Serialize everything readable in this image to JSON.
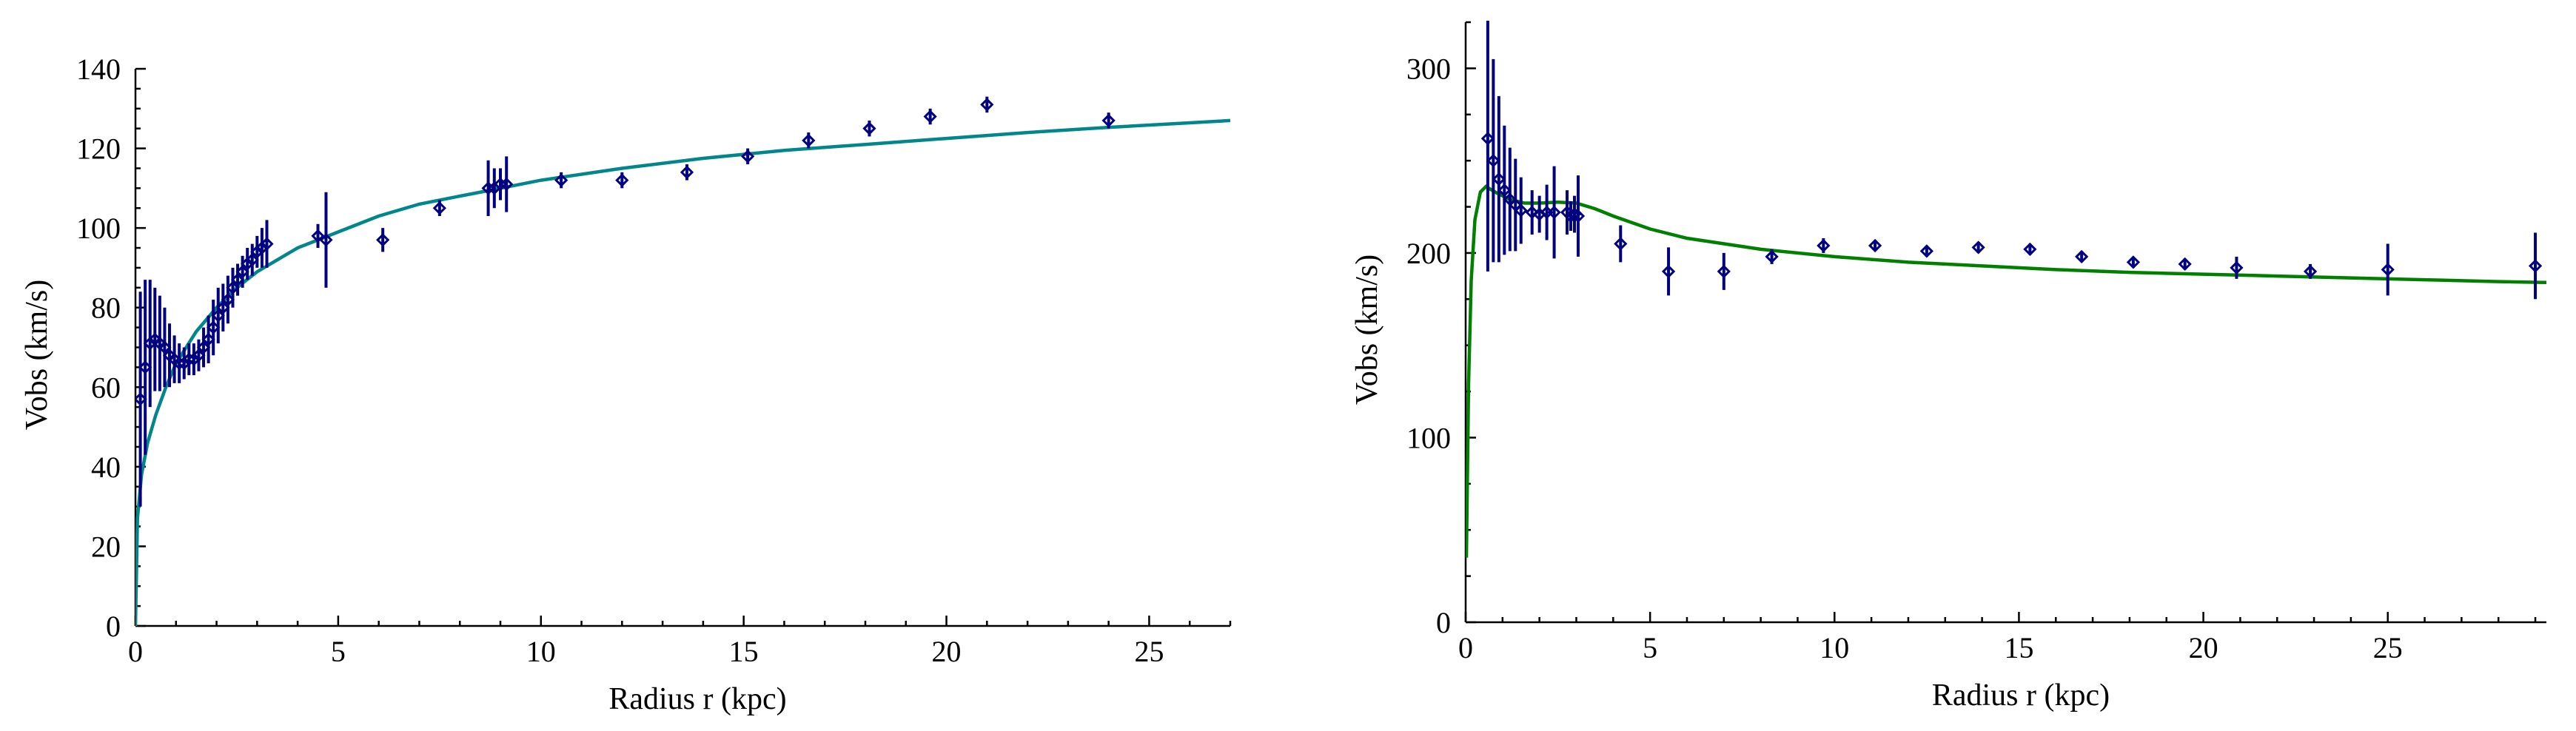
{
  "chart_data": [
    {
      "type": "scatter",
      "title": "",
      "xlabel": "Radius  r  (kpc)",
      "ylabel": "Vobs  (km/s)",
      "xlim": [
        0,
        27
      ],
      "ylim": [
        0,
        140
      ],
      "xticks": [
        0,
        5,
        10,
        15,
        20,
        25
      ],
      "yticks": [
        0,
        20,
        40,
        60,
        80,
        100,
        120,
        140
      ],
      "grid": false,
      "legend": "none",
      "fit_color": "#00868b",
      "marker_color": "#000080",
      "points": [
        {
          "x": 0.12,
          "y": 57,
          "err": 27
        },
        {
          "x": 0.24,
          "y": 65,
          "err": 22
        },
        {
          "x": 0.36,
          "y": 71,
          "err": 16
        },
        {
          "x": 0.48,
          "y": 72,
          "err": 13
        },
        {
          "x": 0.6,
          "y": 71,
          "err": 12
        },
        {
          "x": 0.72,
          "y": 70,
          "err": 10
        },
        {
          "x": 0.84,
          "y": 68,
          "err": 8
        },
        {
          "x": 0.96,
          "y": 67,
          "err": 6
        },
        {
          "x": 1.08,
          "y": 66,
          "err": 5
        },
        {
          "x": 1.2,
          "y": 66,
          "err": 4
        },
        {
          "x": 1.32,
          "y": 67,
          "err": 4
        },
        {
          "x": 1.44,
          "y": 67,
          "err": 4
        },
        {
          "x": 1.56,
          "y": 68,
          "err": 4
        },
        {
          "x": 1.68,
          "y": 70,
          "err": 5
        },
        {
          "x": 1.8,
          "y": 72,
          "err": 6
        },
        {
          "x": 1.92,
          "y": 75,
          "err": 7
        },
        {
          "x": 2.04,
          "y": 78,
          "err": 7
        },
        {
          "x": 2.16,
          "y": 80,
          "err": 6
        },
        {
          "x": 2.28,
          "y": 82,
          "err": 6
        },
        {
          "x": 2.4,
          "y": 85,
          "err": 5
        },
        {
          "x": 2.52,
          "y": 87,
          "err": 4
        },
        {
          "x": 2.64,
          "y": 89,
          "err": 4
        },
        {
          "x": 2.76,
          "y": 91,
          "err": 4
        },
        {
          "x": 2.88,
          "y": 92,
          "err": 4
        },
        {
          "x": 3.0,
          "y": 94,
          "err": 4
        },
        {
          "x": 3.12,
          "y": 95,
          "err": 5
        },
        {
          "x": 3.24,
          "y": 96,
          "err": 6
        },
        {
          "x": 4.5,
          "y": 98,
          "err": 3
        },
        {
          "x": 4.7,
          "y": 97,
          "err": 12
        },
        {
          "x": 6.1,
          "y": 97,
          "err": 3
        },
        {
          "x": 7.5,
          "y": 105,
          "err": 2
        },
        {
          "x": 8.7,
          "y": 110,
          "err": 7
        },
        {
          "x": 8.85,
          "y": 110,
          "err": 5
        },
        {
          "x": 9.0,
          "y": 111,
          "err": 4
        },
        {
          "x": 9.15,
          "y": 111,
          "err": 7
        },
        {
          "x": 10.5,
          "y": 112,
          "err": 2
        },
        {
          "x": 12.0,
          "y": 112,
          "err": 2
        },
        {
          "x": 13.6,
          "y": 114,
          "err": 2
        },
        {
          "x": 15.1,
          "y": 118,
          "err": 2
        },
        {
          "x": 16.6,
          "y": 122,
          "err": 2
        },
        {
          "x": 18.1,
          "y": 125,
          "err": 2
        },
        {
          "x": 19.6,
          "y": 128,
          "err": 2
        },
        {
          "x": 21.0,
          "y": 131,
          "err": 2
        },
        {
          "x": 24.0,
          "y": 127,
          "err": 2
        }
      ],
      "fit_curve": [
        [
          0.0,
          0
        ],
        [
          0.05,
          27
        ],
        [
          0.15,
          38
        ],
        [
          0.3,
          46
        ],
        [
          0.5,
          53
        ],
        [
          0.75,
          60
        ],
        [
          1.0,
          66
        ],
        [
          1.5,
          74
        ],
        [
          2.0,
          80
        ],
        [
          2.5,
          85
        ],
        [
          3.0,
          89
        ],
        [
          4.0,
          95
        ],
        [
          5.0,
          99
        ],
        [
          6.0,
          103
        ],
        [
          7.0,
          106
        ],
        [
          8.0,
          108
        ],
        [
          9.0,
          110
        ],
        [
          10.0,
          112
        ],
        [
          12.0,
          115
        ],
        [
          14.0,
          117.5
        ],
        [
          16.0,
          119.5
        ],
        [
          18.0,
          121
        ],
        [
          20.0,
          122.5
        ],
        [
          22.0,
          124
        ],
        [
          24.0,
          125.3
        ],
        [
          27.0,
          127
        ]
      ]
    },
    {
      "type": "scatter",
      "title": "",
      "xlabel": "Radius  r  (kpc)",
      "ylabel": "Vobs  (km/s)",
      "xlim": [
        0,
        29.3
      ],
      "ylim": [
        0,
        325
      ],
      "xticks": [
        0,
        5,
        10,
        15,
        20,
        25
      ],
      "yticks": [
        0,
        100,
        200,
        300
      ],
      "grid": false,
      "legend": "none",
      "fit_color": "#008000",
      "marker_color": "#000080",
      "points": [
        {
          "x": 0.6,
          "y": 262,
          "err": 72
        },
        {
          "x": 0.75,
          "y": 250,
          "err": 55
        },
        {
          "x": 0.9,
          "y": 240,
          "err": 45
        },
        {
          "x": 1.05,
          "y": 234,
          "err": 35
        },
        {
          "x": 1.2,
          "y": 229,
          "err": 28
        },
        {
          "x": 1.35,
          "y": 226,
          "err": 25
        },
        {
          "x": 1.5,
          "y": 223,
          "err": 18
        },
        {
          "x": 1.8,
          "y": 222,
          "err": 12
        },
        {
          "x": 2.0,
          "y": 221,
          "err": 10
        },
        {
          "x": 2.2,
          "y": 222,
          "err": 15
        },
        {
          "x": 2.4,
          "y": 222,
          "err": 25
        },
        {
          "x": 2.75,
          "y": 222,
          "err": 12
        },
        {
          "x": 2.85,
          "y": 220,
          "err": 8
        },
        {
          "x": 2.95,
          "y": 221,
          "err": 10
        },
        {
          "x": 3.05,
          "y": 220,
          "err": 22
        },
        {
          "x": 4.2,
          "y": 205,
          "err": 10
        },
        {
          "x": 5.5,
          "y": 190,
          "err": 13
        },
        {
          "x": 7.0,
          "y": 190,
          "err": 10
        },
        {
          "x": 8.3,
          "y": 198,
          "err": 4
        },
        {
          "x": 9.7,
          "y": 204,
          "err": 4
        },
        {
          "x": 11.1,
          "y": 204,
          "err": 3
        },
        {
          "x": 12.5,
          "y": 201,
          "err": 3
        },
        {
          "x": 13.9,
          "y": 203,
          "err": 3
        },
        {
          "x": 15.3,
          "y": 202,
          "err": 3
        },
        {
          "x": 16.7,
          "y": 198,
          "err": 3
        },
        {
          "x": 18.1,
          "y": 195,
          "err": 3
        },
        {
          "x": 19.5,
          "y": 194,
          "err": 3
        },
        {
          "x": 20.9,
          "y": 192,
          "err": 6
        },
        {
          "x": 22.9,
          "y": 190,
          "err": 4
        },
        {
          "x": 25.0,
          "y": 191,
          "err": 14
        },
        {
          "x": 29.0,
          "y": 193,
          "err": 18
        }
      ],
      "fit_curve": [
        [
          0.02,
          35
        ],
        [
          0.08,
          130
        ],
        [
          0.15,
          185
        ],
        [
          0.25,
          218
        ],
        [
          0.4,
          233
        ],
        [
          0.55,
          236
        ],
        [
          0.8,
          233
        ],
        [
          1.2,
          229
        ],
        [
          1.6,
          227
        ],
        [
          2.0,
          227
        ],
        [
          2.5,
          227.5
        ],
        [
          3.0,
          227
        ],
        [
          3.5,
          224
        ],
        [
          4.0,
          220
        ],
        [
          5.0,
          213
        ],
        [
          6.0,
          208
        ],
        [
          8.0,
          202
        ],
        [
          10.0,
          198
        ],
        [
          12.0,
          195
        ],
        [
          14.0,
          193
        ],
        [
          16.0,
          191
        ],
        [
          18.0,
          189.5
        ],
        [
          20.0,
          188.5
        ],
        [
          22.0,
          187.5
        ],
        [
          24.0,
          186.5
        ],
        [
          26.0,
          185.5
        ],
        [
          28.0,
          184.5
        ],
        [
          29.3,
          184
        ]
      ]
    }
  ]
}
